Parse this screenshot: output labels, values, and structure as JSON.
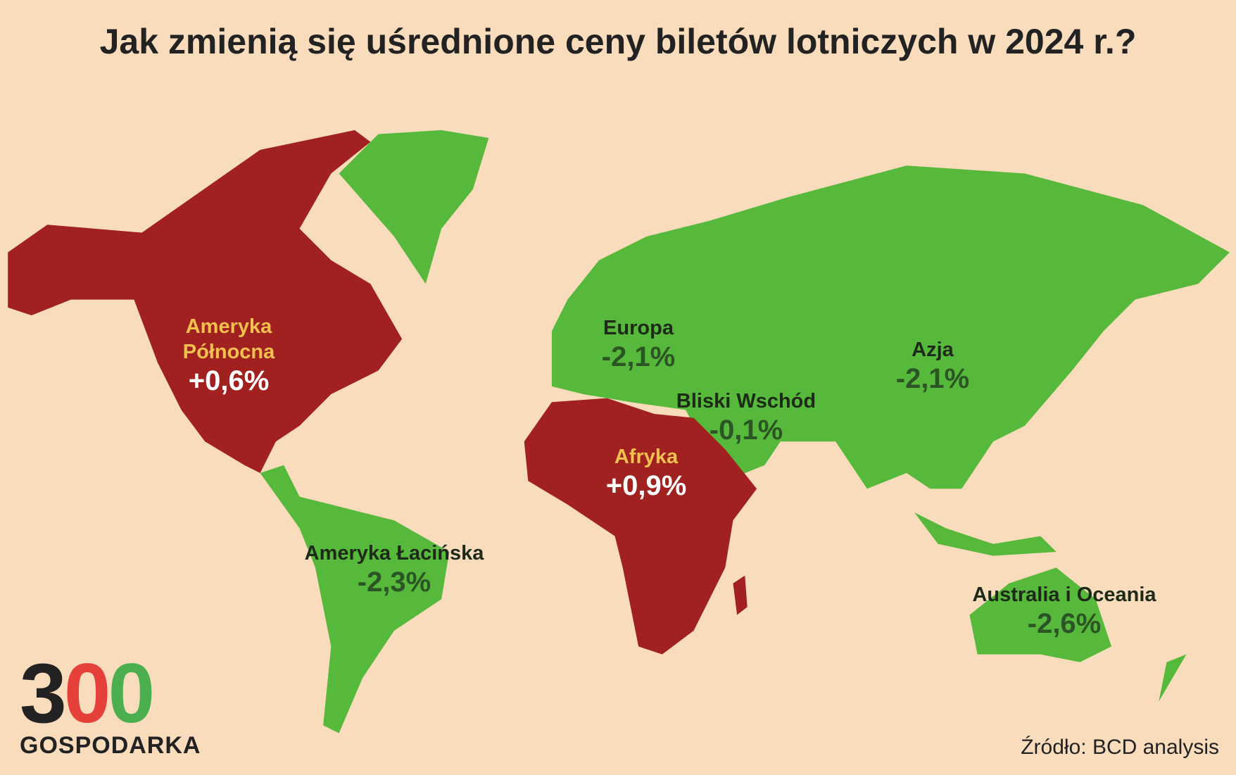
{
  "title": "Jak zmienią się uśrednione ceny biletów lotniczych w 2024 r.?",
  "regions": [
    {
      "name": "Ameryka Północna",
      "change": "+0,6%",
      "color": "#a0211f",
      "name_color": "#f2c14e",
      "change_color": "#ffffff"
    },
    {
      "name": "Europa",
      "change": "-2,1%",
      "color": "#56b93b",
      "name_color": "#1d2a17",
      "change_color": "#2b5525"
    },
    {
      "name": "Azja",
      "change": "-2,1%",
      "color": "#56b93b",
      "name_color": "#1d2a17",
      "change_color": "#2b5525"
    },
    {
      "name": "Bliski Wschód",
      "change": "-0,1%",
      "color": "#56b93b",
      "name_color": "#1d2a17",
      "change_color": "#2b5525"
    },
    {
      "name": "Afryka",
      "change": "+0,9%",
      "color": "#a0211f",
      "name_color": "#f2c14e",
      "change_color": "#ffffff"
    },
    {
      "name": "Ameryka Łacińska",
      "change": "-2,3%",
      "color": "#56b93b",
      "name_color": "#1d2a17",
      "change_color": "#2b5525"
    },
    {
      "name": "Australia i Oceania",
      "change": "-2,6%",
      "color": "#56b93b",
      "name_color": "#1d2a17",
      "change_color": "#2b5525"
    }
  ],
  "logo": {
    "digits": [
      "3",
      "0",
      "0"
    ],
    "name": "GOSPODARKA"
  },
  "source": "Źródło: BCD analysis"
}
